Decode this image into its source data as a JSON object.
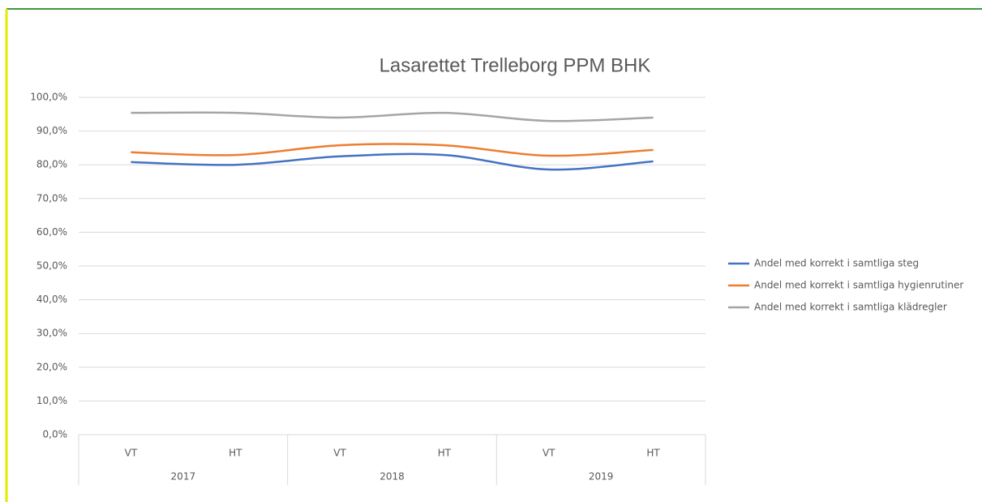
{
  "chart_data": {
    "type": "line",
    "title": "Lasarettet Trelleborg PPM BHK",
    "categories": [
      "VT",
      "HT",
      "VT",
      "HT",
      "VT",
      "HT"
    ],
    "groups": [
      "2017",
      "2018",
      "2019"
    ],
    "series": [
      {
        "name": "Andel med korrekt i samtliga steg",
        "color": "#4472c4",
        "values": [
          80.8,
          80.0,
          82.5,
          82.9,
          78.6,
          81.0
        ]
      },
      {
        "name": "Andel med korrekt i samtliga hygienrutiner",
        "color": "#ed7d31",
        "values": [
          83.7,
          82.9,
          85.8,
          85.8,
          82.7,
          84.4
        ]
      },
      {
        "name": "Andel med korrekt i samtliga klädregler",
        "color": "#a5a5a5",
        "values": [
          95.4,
          95.4,
          94.0,
          95.4,
          93.0,
          94.0
        ]
      }
    ],
    "ylim": [
      0,
      100
    ],
    "yticks": [
      {
        "value": 0,
        "label": "0,0%"
      },
      {
        "value": 10,
        "label": "10,0%"
      },
      {
        "value": 20,
        "label": "20,0%"
      },
      {
        "value": 30,
        "label": "30,0%"
      },
      {
        "value": 40,
        "label": "40,0%"
      },
      {
        "value": 50,
        "label": "50,0%"
      },
      {
        "value": 60,
        "label": "60,0%"
      },
      {
        "value": 70,
        "label": "70,0%"
      },
      {
        "value": 80,
        "label": "80,0%"
      },
      {
        "value": 90,
        "label": "90,0%"
      },
      {
        "value": 100,
        "label": "100,0%"
      }
    ],
    "grid": true,
    "legend": "right",
    "smooth": true
  }
}
